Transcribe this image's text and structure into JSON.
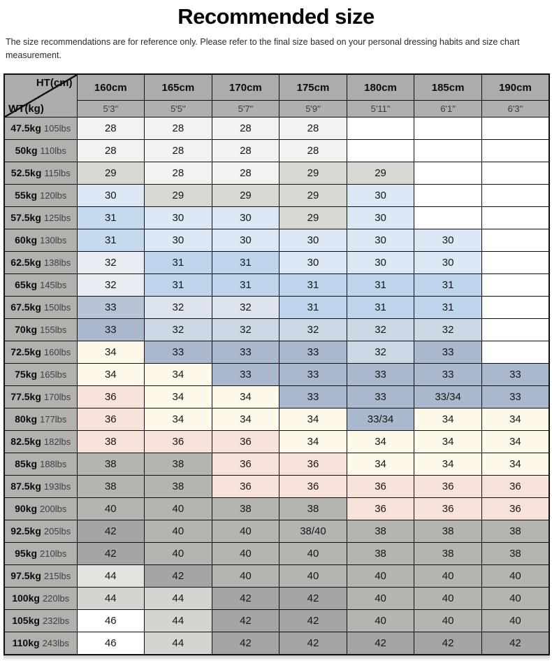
{
  "page": {
    "title": "Recommended size",
    "disclaimer": "The size recommendations are for reference only. Please refer to the final size based on your personal dressing habits and size chart measurement."
  },
  "chart_data": {
    "type": "table",
    "title": "Recommended size",
    "corner": {
      "top_label": "HT(cm)",
      "bottom_label": "WT(kg)"
    },
    "columns": [
      {
        "cm": "160cm",
        "ft": "5'3\""
      },
      {
        "cm": "165cm",
        "ft": "5'5\""
      },
      {
        "cm": "170cm",
        "ft": "5'7\""
      },
      {
        "cm": "175cm",
        "ft": "5'9\""
      },
      {
        "cm": "180cm",
        "ft": "5'11\""
      },
      {
        "cm": "185cm",
        "ft": "6'1\""
      },
      {
        "cm": "190cm",
        "ft": "6'3\""
      }
    ],
    "palette": {
      "border": "#101010",
      "header_bg": "#adacaa",
      "subheader_bg": "#b0afad",
      "label_bg": "#b2b1ae",
      "white": "#ffffff",
      "near": "#f2f2f0",
      "lgray": "#d8d7d2",
      "blue30": "#dce8f5",
      "blue31a": "#c5d9ef",
      "blue31": "#bed4ec",
      "pale32a": "#e9edf3",
      "pale32b": "#dde4ed",
      "pale32c": "#ccd8e6",
      "bluegray33": "#a9b8cc",
      "bluegray33b": "#b6c4d6",
      "cream34": "#fdf8e7",
      "pink36": "#f8e3da",
      "gray38": "#b5b4b1",
      "dgray42": "#a6a5a3",
      "lgray44": "#d5d4d1",
      "xlgray44": "#e4e3e0"
    },
    "rows": [
      {
        "kg": "47.5kg",
        "lbs": "105lbs",
        "cells": [
          {
            "v": "28",
            "c": "near"
          },
          {
            "v": "28",
            "c": "near"
          },
          {
            "v": "28",
            "c": "near"
          },
          {
            "v": "28",
            "c": "near"
          },
          {
            "v": "",
            "c": "white"
          },
          {
            "v": "",
            "c": "white"
          },
          {
            "v": "",
            "c": "white"
          }
        ]
      },
      {
        "kg": "50kg",
        "lbs": "110lbs",
        "cells": [
          {
            "v": "28",
            "c": "near"
          },
          {
            "v": "28",
            "c": "near"
          },
          {
            "v": "28",
            "c": "near"
          },
          {
            "v": "28",
            "c": "near"
          },
          {
            "v": "",
            "c": "white"
          },
          {
            "v": "",
            "c": "white"
          },
          {
            "v": "",
            "c": "white"
          }
        ]
      },
      {
        "kg": "52.5kg",
        "lbs": "115lbs",
        "cells": [
          {
            "v": "29",
            "c": "lgray"
          },
          {
            "v": "28",
            "c": "near"
          },
          {
            "v": "28",
            "c": "near"
          },
          {
            "v": "29",
            "c": "lgray"
          },
          {
            "v": "29",
            "c": "lgray"
          },
          {
            "v": "",
            "c": "white"
          },
          {
            "v": "",
            "c": "white"
          }
        ]
      },
      {
        "kg": "55kg",
        "lbs": "120lbs",
        "cells": [
          {
            "v": "30",
            "c": "blue30"
          },
          {
            "v": "29",
            "c": "lgray"
          },
          {
            "v": "29",
            "c": "lgray"
          },
          {
            "v": "29",
            "c": "lgray"
          },
          {
            "v": "30",
            "c": "blue30"
          },
          {
            "v": "",
            "c": "white"
          },
          {
            "v": "",
            "c": "white"
          }
        ]
      },
      {
        "kg": "57.5kg",
        "lbs": "125lbs",
        "cells": [
          {
            "v": "31",
            "c": "blue31a"
          },
          {
            "v": "30",
            "c": "blue30"
          },
          {
            "v": "30",
            "c": "blue30"
          },
          {
            "v": "29",
            "c": "lgray"
          },
          {
            "v": "30",
            "c": "blue30"
          },
          {
            "v": "",
            "c": "white"
          },
          {
            "v": "",
            "c": "white"
          }
        ]
      },
      {
        "kg": "60kg",
        "lbs": "130lbs",
        "cells": [
          {
            "v": "31",
            "c": "blue31a"
          },
          {
            "v": "30",
            "c": "blue30"
          },
          {
            "v": "30",
            "c": "blue30"
          },
          {
            "v": "30",
            "c": "blue30"
          },
          {
            "v": "30",
            "c": "blue30"
          },
          {
            "v": "30",
            "c": "blue30"
          },
          {
            "v": "",
            "c": "white"
          }
        ]
      },
      {
        "kg": "62.5kg",
        "lbs": "138lbs",
        "cells": [
          {
            "v": "32",
            "c": "pale32a"
          },
          {
            "v": "31",
            "c": "blue31"
          },
          {
            "v": "31",
            "c": "blue31"
          },
          {
            "v": "30",
            "c": "blue30"
          },
          {
            "v": "30",
            "c": "blue30"
          },
          {
            "v": "30",
            "c": "blue30"
          },
          {
            "v": "",
            "c": "white"
          }
        ]
      },
      {
        "kg": "65kg",
        "lbs": "145lbs",
        "cells": [
          {
            "v": "32",
            "c": "pale32a"
          },
          {
            "v": "31",
            "c": "blue31"
          },
          {
            "v": "31",
            "c": "blue31"
          },
          {
            "v": "31",
            "c": "blue31"
          },
          {
            "v": "31",
            "c": "blue31"
          },
          {
            "v": "31",
            "c": "blue31"
          },
          {
            "v": "",
            "c": "white"
          }
        ]
      },
      {
        "kg": "67.5kg",
        "lbs": "150lbs",
        "cells": [
          {
            "v": "33",
            "c": "bluegray33b"
          },
          {
            "v": "32",
            "c": "pale32b"
          },
          {
            "v": "32",
            "c": "pale32b"
          },
          {
            "v": "31",
            "c": "blue31"
          },
          {
            "v": "31",
            "c": "blue31"
          },
          {
            "v": "31",
            "c": "blue31"
          },
          {
            "v": "",
            "c": "white"
          }
        ]
      },
      {
        "kg": "70kg",
        "lbs": "155lbs",
        "cells": [
          {
            "v": "33",
            "c": "bluegray33"
          },
          {
            "v": "32",
            "c": "pale32c"
          },
          {
            "v": "32",
            "c": "pale32c"
          },
          {
            "v": "32",
            "c": "pale32c"
          },
          {
            "v": "32",
            "c": "pale32c"
          },
          {
            "v": "32",
            "c": "pale32c"
          },
          {
            "v": "",
            "c": "white"
          }
        ]
      },
      {
        "kg": "72.5kg",
        "lbs": "160lbs",
        "cells": [
          {
            "v": "34",
            "c": "cream34"
          },
          {
            "v": "33",
            "c": "bluegray33"
          },
          {
            "v": "33",
            "c": "bluegray33"
          },
          {
            "v": "33",
            "c": "bluegray33"
          },
          {
            "v": "32",
            "c": "pale32c"
          },
          {
            "v": "33",
            "c": "bluegray33"
          },
          {
            "v": "",
            "c": "white"
          }
        ]
      },
      {
        "kg": "75kg",
        "lbs": "165lbs",
        "cells": [
          {
            "v": "34",
            "c": "cream34"
          },
          {
            "v": "34",
            "c": "cream34"
          },
          {
            "v": "33",
            "c": "bluegray33"
          },
          {
            "v": "33",
            "c": "bluegray33"
          },
          {
            "v": "33",
            "c": "bluegray33"
          },
          {
            "v": "33",
            "c": "bluegray33"
          },
          {
            "v": "33",
            "c": "bluegray33"
          }
        ]
      },
      {
        "kg": "77.5kg",
        "lbs": "170lbs",
        "cells": [
          {
            "v": "36",
            "c": "pink36"
          },
          {
            "v": "34",
            "c": "cream34"
          },
          {
            "v": "34",
            "c": "cream34"
          },
          {
            "v": "33",
            "c": "bluegray33"
          },
          {
            "v": "33",
            "c": "bluegray33"
          },
          {
            "v": "33/34",
            "c": "bluegray33"
          },
          {
            "v": "33",
            "c": "bluegray33"
          }
        ]
      },
      {
        "kg": "80kg",
        "lbs": "177lbs",
        "cells": [
          {
            "v": "36",
            "c": "pink36"
          },
          {
            "v": "34",
            "c": "cream34"
          },
          {
            "v": "34",
            "c": "cream34"
          },
          {
            "v": "34",
            "c": "cream34"
          },
          {
            "v": "33/34",
            "c": "bluegray33"
          },
          {
            "v": "34",
            "c": "cream34"
          },
          {
            "v": "34",
            "c": "cream34"
          }
        ]
      },
      {
        "kg": "82.5kg",
        "lbs": "182lbs",
        "cells": [
          {
            "v": "38",
            "c": "pink36"
          },
          {
            "v": "36",
            "c": "pink36"
          },
          {
            "v": "36",
            "c": "pink36"
          },
          {
            "v": "34",
            "c": "cream34"
          },
          {
            "v": "34",
            "c": "cream34"
          },
          {
            "v": "34",
            "c": "cream34"
          },
          {
            "v": "34",
            "c": "cream34"
          }
        ]
      },
      {
        "kg": "85kg",
        "lbs": "188lbs",
        "cells": [
          {
            "v": "38",
            "c": "gray38"
          },
          {
            "v": "38",
            "c": "gray38"
          },
          {
            "v": "36",
            "c": "pink36"
          },
          {
            "v": "36",
            "c": "pink36"
          },
          {
            "v": "34",
            "c": "cream34"
          },
          {
            "v": "34",
            "c": "cream34"
          },
          {
            "v": "34",
            "c": "cream34"
          }
        ]
      },
      {
        "kg": "87.5kg",
        "lbs": "193lbs",
        "cells": [
          {
            "v": "38",
            "c": "gray38"
          },
          {
            "v": "38",
            "c": "gray38"
          },
          {
            "v": "36",
            "c": "pink36"
          },
          {
            "v": "36",
            "c": "pink36"
          },
          {
            "v": "36",
            "c": "pink36"
          },
          {
            "v": "36",
            "c": "pink36"
          },
          {
            "v": "36",
            "c": "pink36"
          }
        ]
      },
      {
        "kg": "90kg",
        "lbs": "200lbs",
        "cells": [
          {
            "v": "40",
            "c": "gray38"
          },
          {
            "v": "40",
            "c": "gray38"
          },
          {
            "v": "38",
            "c": "gray38"
          },
          {
            "v": "38",
            "c": "gray38"
          },
          {
            "v": "36",
            "c": "pink36"
          },
          {
            "v": "36",
            "c": "pink36"
          },
          {
            "v": "36",
            "c": "pink36"
          }
        ]
      },
      {
        "kg": "92.5kg",
        "lbs": "205lbs",
        "cells": [
          {
            "v": "42",
            "c": "dgray42"
          },
          {
            "v": "40",
            "c": "gray38"
          },
          {
            "v": "40",
            "c": "gray38"
          },
          {
            "v": "38/40",
            "c": "gray38"
          },
          {
            "v": "38",
            "c": "gray38"
          },
          {
            "v": "38",
            "c": "gray38"
          },
          {
            "v": "38",
            "c": "gray38"
          }
        ]
      },
      {
        "kg": "95kg",
        "lbs": "210lbs",
        "cells": [
          {
            "v": "42",
            "c": "dgray42"
          },
          {
            "v": "40",
            "c": "gray38"
          },
          {
            "v": "40",
            "c": "gray38"
          },
          {
            "v": "40",
            "c": "gray38"
          },
          {
            "v": "38",
            "c": "gray38"
          },
          {
            "v": "38",
            "c": "gray38"
          },
          {
            "v": "38",
            "c": "gray38"
          }
        ]
      },
      {
        "kg": "97.5kg",
        "lbs": "215lbs",
        "cells": [
          {
            "v": "44",
            "c": "xlgray44"
          },
          {
            "v": "42",
            "c": "dgray42"
          },
          {
            "v": "40",
            "c": "gray38"
          },
          {
            "v": "40",
            "c": "gray38"
          },
          {
            "v": "40",
            "c": "gray38"
          },
          {
            "v": "40",
            "c": "gray38"
          },
          {
            "v": "40",
            "c": "gray38"
          }
        ]
      },
      {
        "kg": "100kg",
        "lbs": "220lbs",
        "cells": [
          {
            "v": "44",
            "c": "lgray44"
          },
          {
            "v": "44",
            "c": "lgray44"
          },
          {
            "v": "42",
            "c": "dgray42"
          },
          {
            "v": "42",
            "c": "dgray42"
          },
          {
            "v": "40",
            "c": "gray38"
          },
          {
            "v": "40",
            "c": "gray38"
          },
          {
            "v": "40",
            "c": "gray38"
          }
        ]
      },
      {
        "kg": "105kg",
        "lbs": "232lbs",
        "cells": [
          {
            "v": "46",
            "c": "white"
          },
          {
            "v": "44",
            "c": "lgray44"
          },
          {
            "v": "42",
            "c": "dgray42"
          },
          {
            "v": "42",
            "c": "dgray42"
          },
          {
            "v": "40",
            "c": "gray38"
          },
          {
            "v": "40",
            "c": "gray38"
          },
          {
            "v": "40",
            "c": "gray38"
          }
        ]
      },
      {
        "kg": "110kg",
        "lbs": "243lbs",
        "cells": [
          {
            "v": "46",
            "c": "white"
          },
          {
            "v": "44",
            "c": "lgray44"
          },
          {
            "v": "42",
            "c": "dgray42"
          },
          {
            "v": "42",
            "c": "dgray42"
          },
          {
            "v": "42",
            "c": "dgray42"
          },
          {
            "v": "42",
            "c": "dgray42"
          },
          {
            "v": "42",
            "c": "dgray42"
          }
        ]
      }
    ]
  }
}
